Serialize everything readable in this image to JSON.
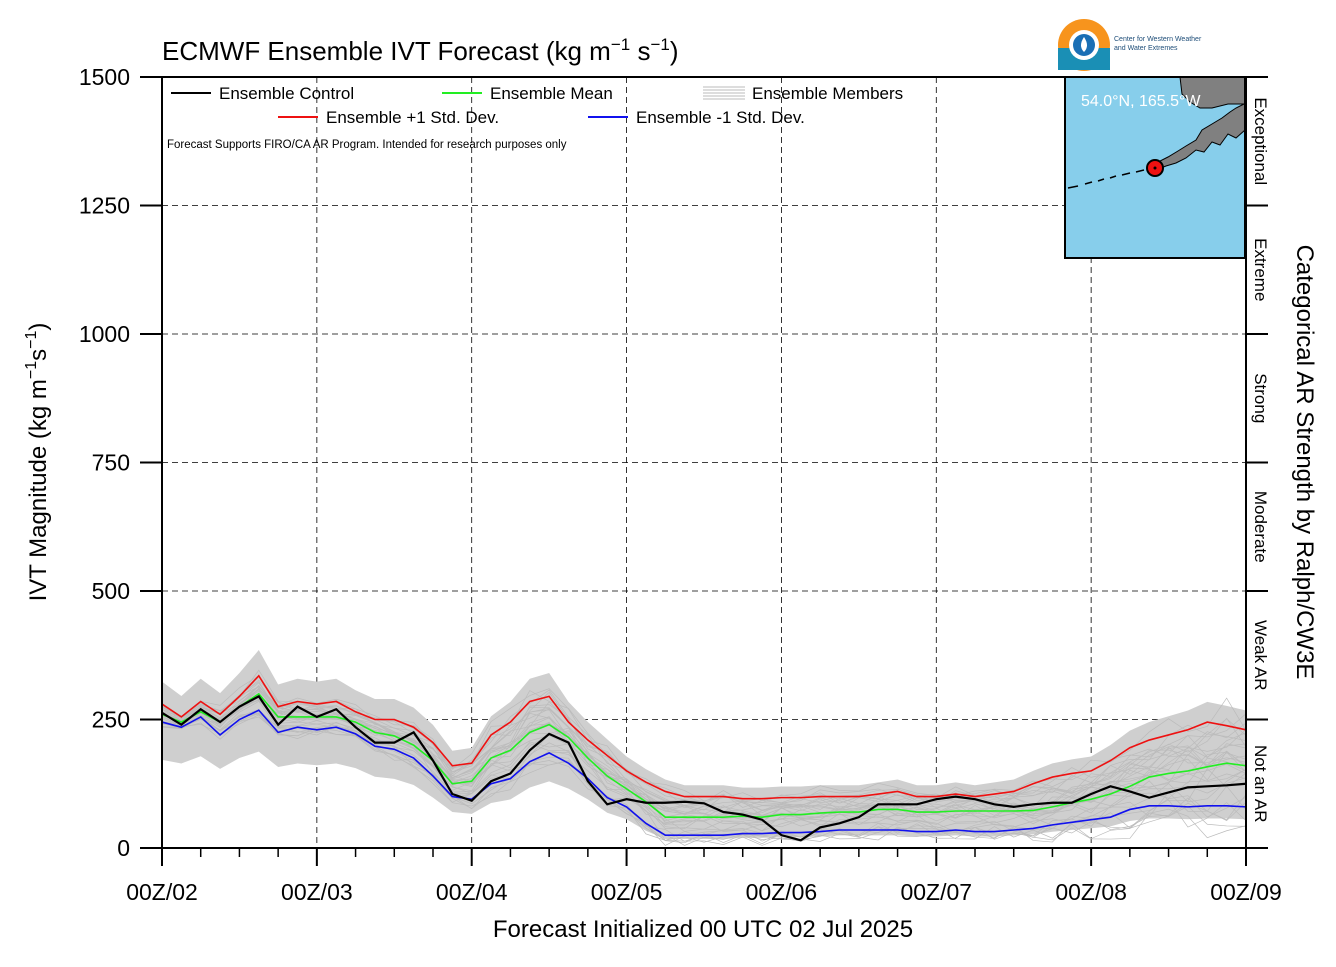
{
  "chart_data": {
    "type": "line",
    "title": "ECMWF Ensemble IVT Forecast (kg m",
    "title_sup1": "−1",
    "title_mid": " s",
    "title_sup2": "−1",
    "title_end": ")",
    "ylabel": "IVT Magnitude (kg m",
    "ylabel_sup1": "−1",
    "ylabel_mid": "s",
    "ylabel_sup2": "−1",
    "ylabel_end": ")",
    "xlabel": "Forecast Initialized 00 UTC 02 Jul 2025",
    "right_label": "Categorical AR Strength by Ralph/CW3E",
    "ylim": [
      0,
      1500
    ],
    "y_ticks": [
      0,
      250,
      500,
      750,
      1000,
      1250,
      1500
    ],
    "y_tick_labels": [
      "0",
      "250",
      "500",
      "750",
      "1000",
      "1250",
      "1500"
    ],
    "xlim_hours": [
      0,
      168
    ],
    "x_ticks_hours": [
      0,
      24,
      48,
      72,
      96,
      120,
      144,
      168
    ],
    "x_tick_labels": [
      "00Z/02",
      "00Z/03",
      "00Z/04",
      "00Z/05",
      "00Z/06",
      "00Z/07",
      "00Z/08",
      "00Z/09"
    ],
    "grid": true,
    "categories": [
      {
        "label": "Not an AR",
        "from": 0,
        "to": 250
      },
      {
        "label": "Weak AR",
        "from": 250,
        "to": 500
      },
      {
        "label": "Moderate",
        "from": 500,
        "to": 750
      },
      {
        "label": "Strong",
        "from": 750,
        "to": 1000
      },
      {
        "label": "Extreme",
        "from": 1000,
        "to": 1250
      },
      {
        "label": "Exceptional",
        "from": 1250,
        "to": 1500
      }
    ],
    "legend": {
      "placement": "top-left",
      "entries": [
        {
          "label": "Ensemble Control",
          "color": "#000000"
        },
        {
          "label": "Ensemble Mean",
          "color": "#22ee22"
        },
        {
          "label": "Ensemble Members",
          "color": "#bbbbbb"
        },
        {
          "label": "Ensemble +1 Std. Dev.",
          "color": "#ee1111"
        },
        {
          "label": "Ensemble -1 Std. Dev.",
          "color": "#1111ee"
        }
      ]
    },
    "note": "Forecast Supports FIRO/CA AR Program. Intended for research purposes only",
    "inset_location": "54.0°N, 165.5°W",
    "colors": {
      "control": "#000000",
      "mean": "#22ee22",
      "plus": "#ee1111",
      "minus": "#1111ee",
      "members": "#bbbbbb",
      "envelope": "#cfcfcf",
      "ocean": "#87ceeb",
      "land": "#808080"
    },
    "x": [
      0,
      3,
      6,
      9,
      12,
      15,
      18,
      21,
      24,
      27,
      30,
      33,
      36,
      39,
      42,
      45,
      48,
      51,
      54,
      57,
      60,
      63,
      66,
      69,
      72,
      75,
      78,
      81,
      84,
      87,
      90,
      93,
      96,
      99,
      102,
      105,
      108,
      111,
      114,
      117,
      120,
      123,
      126,
      129,
      132,
      135,
      138,
      141,
      144,
      147,
      150,
      153,
      156,
      159,
      162,
      165,
      168
    ],
    "series": [
      {
        "name": "Ensemble Control",
        "values": [
          263,
          240,
          270,
          245,
          275,
          295,
          240,
          275,
          255,
          270,
          235,
          205,
          205,
          225,
          170,
          105,
          92,
          130,
          145,
          190,
          222,
          205,
          130,
          85,
          95,
          88,
          88,
          90,
          87,
          70,
          65,
          55,
          25,
          15,
          40,
          48,
          60,
          85,
          85,
          85,
          95,
          100,
          95,
          85,
          80,
          85,
          88,
          88,
          105,
          120,
          110,
          98,
          108,
          118,
          120,
          122,
          125
        ]
      },
      {
        "name": "Ensemble Mean",
        "values": [
          260,
          245,
          265,
          245,
          275,
          300,
          255,
          255,
          255,
          255,
          245,
          225,
          218,
          200,
          170,
          125,
          130,
          175,
          190,
          225,
          240,
          215,
          175,
          140,
          115,
          90,
          60,
          60,
          60,
          60,
          62,
          60,
          65,
          65,
          68,
          70,
          70,
          75,
          75,
          70,
          70,
          72,
          72,
          72,
          72,
          73,
          80,
          88,
          95,
          105,
          120,
          138,
          145,
          150,
          158,
          165,
          160
        ]
      },
      {
        "name": "Ensemble +1 Std. Dev.",
        "values": [
          280,
          255,
          285,
          260,
          295,
          335,
          275,
          285,
          280,
          285,
          265,
          250,
          250,
          235,
          205,
          160,
          165,
          220,
          245,
          285,
          295,
          245,
          210,
          180,
          150,
          128,
          110,
          100,
          100,
          100,
          96,
          96,
          98,
          98,
          100,
          100,
          100,
          105,
          110,
          100,
          100,
          105,
          100,
          105,
          110,
          125,
          138,
          145,
          150,
          170,
          195,
          210,
          220,
          230,
          245,
          238,
          230
        ]
      },
      {
        "name": "Ensemble -1 Std. Dev.",
        "values": [
          245,
          235,
          255,
          220,
          250,
          268,
          225,
          235,
          230,
          235,
          222,
          198,
          192,
          175,
          140,
          100,
          95,
          125,
          135,
          168,
          185,
          165,
          135,
          98,
          80,
          48,
          25,
          25,
          25,
          25,
          28,
          28,
          30,
          30,
          32,
          35,
          35,
          35,
          35,
          32,
          32,
          35,
          32,
          32,
          35,
          38,
          45,
          50,
          55,
          60,
          75,
          82,
          82,
          80,
          82,
          82,
          80
        ]
      }
    ]
  }
}
